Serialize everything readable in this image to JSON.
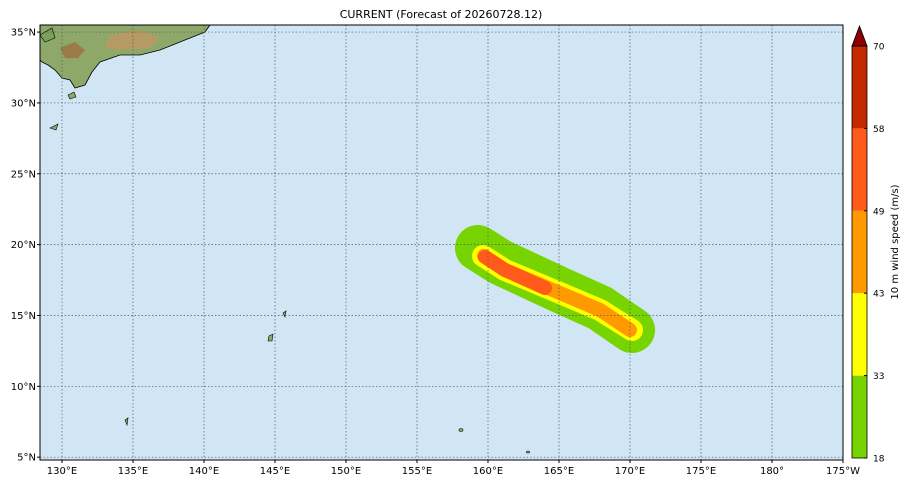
{
  "title": "CURRENT (Forecast of 20260728.12)",
  "map": {
    "lon_range": [
      128.45,
      185
    ],
    "lat_range": [
      4.8,
      35.5
    ],
    "grid": true,
    "lon_ticks": [
      {
        "value": 130,
        "label": "130°E"
      },
      {
        "value": 135,
        "label": "135°E"
      },
      {
        "value": 140,
        "label": "140°E"
      },
      {
        "value": 145,
        "label": "145°E"
      },
      {
        "value": 150,
        "label": "150°E"
      },
      {
        "value": 155,
        "label": "155°E"
      },
      {
        "value": 160,
        "label": "160°E"
      },
      {
        "value": 165,
        "label": "165°E"
      },
      {
        "value": 170,
        "label": "170°E"
      },
      {
        "value": 175,
        "label": "175°E"
      },
      {
        "value": 180,
        "label": "180°"
      },
      {
        "value": 185,
        "label": "175°W"
      }
    ],
    "lat_ticks": [
      {
        "value": 5,
        "label": "5°N"
      },
      {
        "value": 10,
        "label": "10°N"
      },
      {
        "value": 15,
        "label": "15°N"
      },
      {
        "value": 20,
        "label": "20°N"
      },
      {
        "value": 25,
        "label": "25°N"
      },
      {
        "value": 30,
        "label": "30°N"
      },
      {
        "value": 35,
        "label": "35°N"
      }
    ]
  },
  "colorbar": {
    "label": "10 m wind speed (m/s)",
    "ticks": [
      18,
      33,
      43,
      49,
      58,
      70
    ],
    "colors": [
      "#77d400",
      "#ffff00",
      "#ff9900",
      "#ff5a1a",
      "#c42a00"
    ],
    "extend_color": "#8b0000"
  }
}
